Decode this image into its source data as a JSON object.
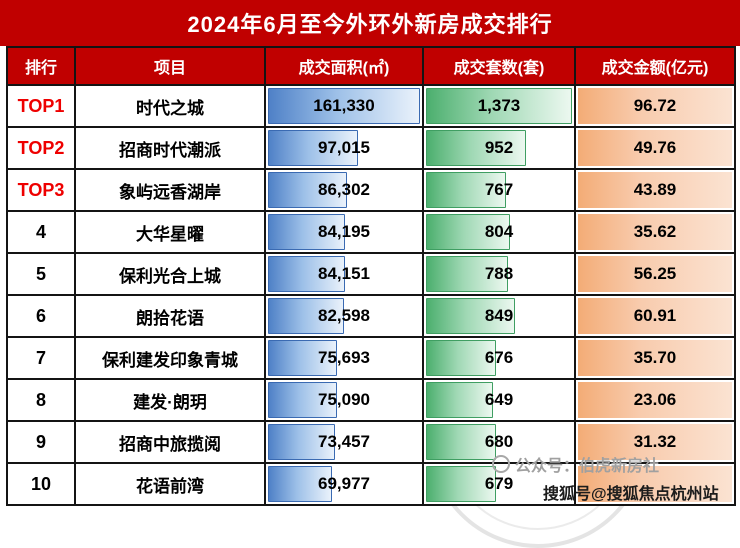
{
  "chart_data": {
    "type": "table",
    "title": "2024年6月至今外环外新房成交排行",
    "columns": [
      "排行",
      "项目",
      "成交面积(㎡)",
      "成交套数(套)",
      "成交金额(亿元)"
    ],
    "rows": [
      {
        "rank": "TOP1",
        "project": "时代之城",
        "area": "161,330",
        "units": "1,373",
        "amount": "96.72"
      },
      {
        "rank": "TOP2",
        "project": "招商时代潮派",
        "area": "97,015",
        "units": "952",
        "amount": "49.76"
      },
      {
        "rank": "TOP3",
        "project": "象屿远香湖岸",
        "area": "86,302",
        "units": "767",
        "amount": "43.89"
      },
      {
        "rank": "4",
        "project": "大华星曜",
        "area": "84,195",
        "units": "804",
        "amount": "35.62"
      },
      {
        "rank": "5",
        "project": "保利光合上城",
        "area": "84,151",
        "units": "788",
        "amount": "56.25"
      },
      {
        "rank": "6",
        "project": "朗拾花语",
        "area": "82,598",
        "units": "849",
        "amount": "60.91"
      },
      {
        "rank": "7",
        "project": "保利建发印象青城",
        "area": "75,693",
        "units": "676",
        "amount": "35.70"
      },
      {
        "rank": "8",
        "project": "建发·朗玥",
        "area": "75,090",
        "units": "649",
        "amount": "23.06"
      },
      {
        "rank": "9",
        "project": "招商中旅揽阅",
        "area": "73,457",
        "units": "680",
        "amount": "31.32"
      },
      {
        "rank": "10",
        "project": "花语前湾",
        "area": "69,977",
        "units": "679",
        "amount": ""
      }
    ]
  },
  "watermarks": {
    "gongzhonghao": "公众号：伯虎新房社",
    "sohu": "搜狐号@搜狐焦点杭州站"
  },
  "colors": {
    "accent_red": "#c00000",
    "top_rank_red": "#ee0000",
    "area_bar_blue": "#4f81c7",
    "units_bar_green": "#4caf6e",
    "amount_fill_orange": "#f8cbad",
    "grid_black": "#141414"
  }
}
